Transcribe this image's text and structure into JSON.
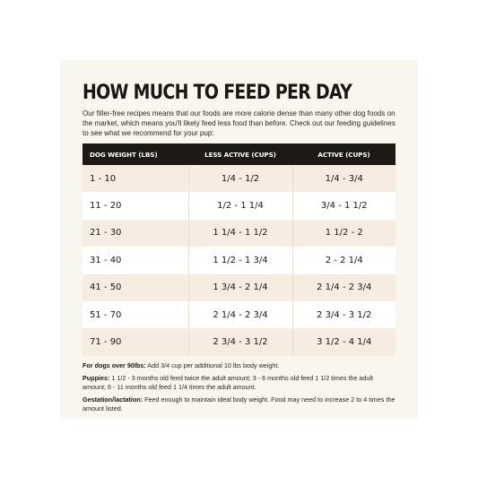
{
  "title": "HOW MUCH TO FEED PER DAY",
  "intro": "Our filler-free recipes means that our foods are more calorie dense than many other dog foods on the market, which means you'll likely feed less food than before. Check out our feeding guidelines to see what we recommend for your pup:",
  "table": {
    "headers": [
      "DOG WEIGHT (LBS)",
      "LESS ACTIVE (CUPS)",
      "ACTIVE (CUPS)"
    ],
    "rows": [
      [
        "1 - 10",
        "1/4 - 1/2",
        "1/4 - 3/4"
      ],
      [
        "11 - 20",
        "1/2 - 1 1/4",
        "3/4 - 1 1/2"
      ],
      [
        "21 - 30",
        "1 1/4 - 1 1/2",
        "1 1/2 - 2"
      ],
      [
        "31 - 40",
        "1 1/2 - 1 3/4",
        "2 - 2 1/4"
      ],
      [
        "41 - 50",
        "1 3/4 - 2 1/4",
        "2 1/4 - 2 3/4"
      ],
      [
        "51 - 70",
        "2 1/4 - 2 3/4",
        "2 3/4 - 3 1/2"
      ],
      [
        "71 - 90",
        "2 3/4 - 3 1/2",
        "3 1/2 - 4 1/4"
      ]
    ]
  },
  "notes": [
    {
      "label": "For dogs over 90lbs:",
      "text": " Add 3/4 cup per additional 10 lbs body weight."
    },
    {
      "label": "Puppies:",
      "text": " 1 1/2 - 3 months old feed twice the adult amount; 3 - 6 months old feed 1 1/2 times the adult amount; 6 - 11 months old feed 1 1/4 times the adult amount."
    },
    {
      "label": "Gestation/lactation:",
      "text": " Feed enough to maintain ideal body weight. Food may need to increase 2 to 4 times the amount listed."
    }
  ],
  "colors": {
    "card_background": "#f9f5ef",
    "header_background": "#1d1915",
    "row_tint": "#f7ece0",
    "text": "#1a1613"
  }
}
